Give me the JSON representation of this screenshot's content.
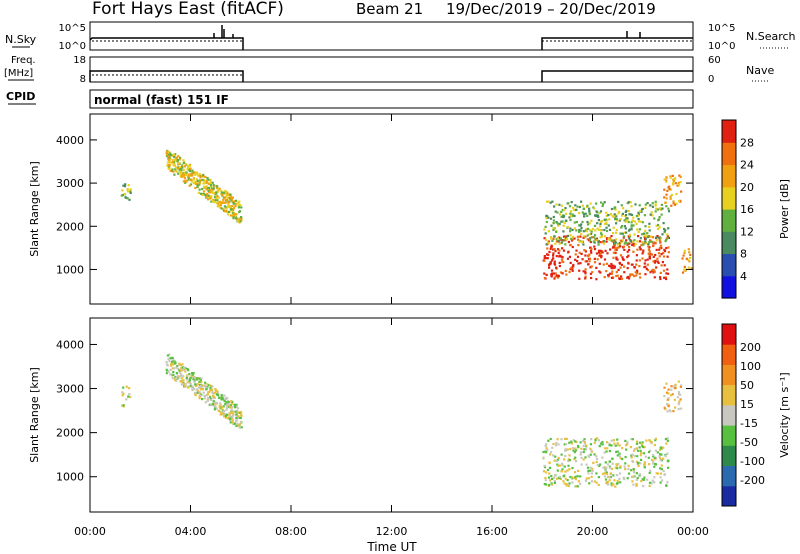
{
  "header": {
    "station": "Fort Hays East (fitACF)",
    "beam": "Beam 21",
    "dates": "19/Dec/2019 – 20/Dec/2019"
  },
  "strips": {
    "nsky": {
      "label": "N.Sky",
      "ticks": [
        "10^5",
        "10^0"
      ],
      "right_label": "N.Search",
      "right_ticks": [
        "10^5",
        "10^0"
      ]
    },
    "freq": {
      "label_line1": "Freq.",
      "label_line2": "[MHz]",
      "ticks": [
        18,
        8
      ],
      "right_label": "Nave",
      "right_ticks": [
        60,
        0
      ]
    },
    "cpid": {
      "label": "CPID",
      "text": "normal (fast) 151 IF"
    }
  },
  "chart_data": [
    {
      "type": "heatmap",
      "panel": "power",
      "xlabel": "Time UT",
      "ylabel": "Slant Range [km]",
      "x_range_hours": [
        0,
        24
      ],
      "x_ticks": [
        "00:00",
        "04:00",
        "08:00",
        "12:00",
        "16:00",
        "20:00",
        "00:00"
      ],
      "ylim": [
        200,
        4600
      ],
      "y_ticks": [
        1000,
        2000,
        3000,
        4000
      ],
      "colorbar": {
        "label": "Power [dB]",
        "ticks": [
          4,
          8,
          12,
          16,
          20,
          24,
          28
        ],
        "colors": [
          "#1010e0",
          "#2a4db0",
          "#4a8a60",
          "#60b040",
          "#e8d020",
          "#f0a010",
          "#f07010",
          "#e02010"
        ]
      },
      "blobs": [
        {
          "h0": 1.2,
          "h1": 1.6,
          "r0": 2600,
          "r1": 3100,
          "level": 3
        },
        {
          "h0": 3.0,
          "h1": 6.0,
          "r0": 2000,
          "r1": 3600,
          "level": 4,
          "trend": "descending"
        },
        {
          "h0": 18.0,
          "h1": 23.0,
          "r0": 800,
          "r1": 1800,
          "level": 7
        },
        {
          "h0": 18.0,
          "h1": 23.0,
          "r0": 1600,
          "r1": 2600,
          "level": 3
        },
        {
          "h0": 22.8,
          "h1": 23.5,
          "r0": 2500,
          "r1": 3200,
          "level": 5
        },
        {
          "h0": 23.5,
          "h1": 24.0,
          "r0": 900,
          "r1": 1500,
          "level": 5
        }
      ]
    },
    {
      "type": "heatmap",
      "panel": "velocity",
      "xlabel": "Time UT",
      "ylabel": "Slant Range [km]",
      "x_range_hours": [
        0,
        24
      ],
      "x_ticks": [
        "00:00",
        "04:00",
        "08:00",
        "12:00",
        "16:00",
        "20:00",
        "00:00"
      ],
      "ylim": [
        200,
        4600
      ],
      "y_ticks": [
        1000,
        2000,
        3000,
        4000
      ],
      "colorbar": {
        "label": "Velocity [m s⁻¹]",
        "ticks": [
          200,
          100,
          50,
          15,
          -15,
          -50,
          -100,
          -200
        ],
        "colors": [
          "#1a2aa0",
          "#2c6ab0",
          "#2e8a4a",
          "#58c040",
          "#c8c8c0",
          "#e8c040",
          "#f09020",
          "#f06010",
          "#e01010"
        ]
      },
      "blobs": [
        {
          "h0": 1.2,
          "h1": 1.6,
          "r0": 2600,
          "r1": 3100,
          "level": 4
        },
        {
          "h0": 3.0,
          "h1": 6.0,
          "r0": 2000,
          "r1": 3600,
          "level": 4,
          "trend": "descending"
        },
        {
          "h0": 18.0,
          "h1": 23.0,
          "r0": 800,
          "r1": 1900,
          "level": 4
        },
        {
          "h0": 22.8,
          "h1": 23.5,
          "r0": 2500,
          "r1": 3200,
          "level": 5
        }
      ]
    }
  ]
}
